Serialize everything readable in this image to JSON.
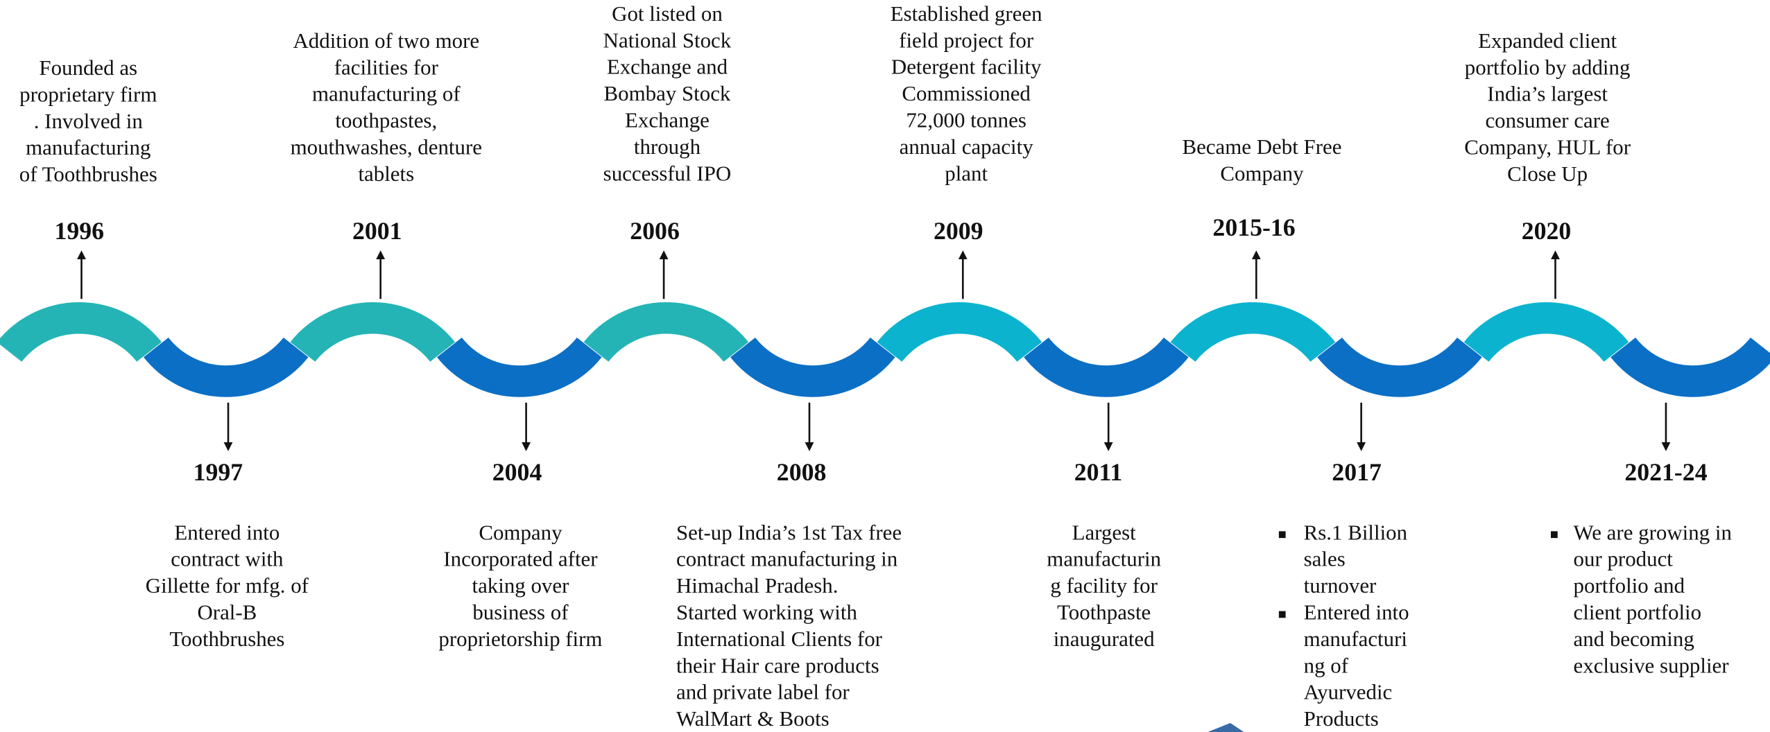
{
  "milestones": [
    {
      "year": "1996",
      "lines": [
        "Founded as",
        "proprietary firm",
        ". Involved in",
        "manufacturing",
        "of Toothbrushes"
      ]
    },
    {
      "year": "1997",
      "lines": [
        "Entered into",
        "contract with",
        "Gillette for mfg. of",
        "Oral-B",
        "Toothbrushes"
      ]
    },
    {
      "year": "2001",
      "lines": [
        "Addition of two more",
        "facilities for",
        "manufacturing of",
        "toothpastes,",
        "mouthwashes, denture",
        "tablets"
      ]
    },
    {
      "year": "2004",
      "lines": [
        "Company",
        "Incorporated after",
        "taking over",
        "business of",
        "proprietorship firm"
      ]
    },
    {
      "year": "2006",
      "lines": [
        "Got listed on",
        "National Stock",
        "Exchange and",
        "Bombay Stock",
        "Exchange",
        "through",
        "successful IPO"
      ]
    },
    {
      "year": "2008",
      "lines": [
        "Set-up India’s 1st Tax free",
        "contract manufacturing in",
        "Himachal Pradesh.",
        "Started working with",
        "International Clients for",
        "their Hair care products",
        "and private label for",
        "WalMart & Boots"
      ]
    },
    {
      "year": "2009",
      "lines": [
        "Established green",
        "field project for",
        "Detergent facility",
        "Commissioned",
        "72,000 tonnes",
        "annual capacity",
        "plant"
      ]
    },
    {
      "year": "2011",
      "lines": [
        "Largest",
        "manufacturin",
        "g facility for",
        "Toothpaste",
        "inaugurated"
      ]
    },
    {
      "year": "2015-16",
      "lines": [
        "Became Debt Free",
        "Company"
      ]
    },
    {
      "year": "2017",
      "bullets": [
        [
          "Rs.1 Billion",
          "sales",
          "turnover"
        ],
        [
          "Entered into",
          "manufacturi",
          "ng of",
          "Ayurvedic",
          "Products"
        ]
      ]
    },
    {
      "year": "2020",
      "lines": [
        "Expanded client",
        "portfolio by adding",
        "India’s largest",
        "consumer care",
        "Company, HUL  for",
        "Close Up"
      ]
    },
    {
      "year": "2021-24",
      "bullets": [
        [
          "We are growing in",
          "our product",
          "portfolio and",
          "client portfolio",
          "and becoming",
          "exclusive supplier"
        ]
      ]
    }
  ]
}
